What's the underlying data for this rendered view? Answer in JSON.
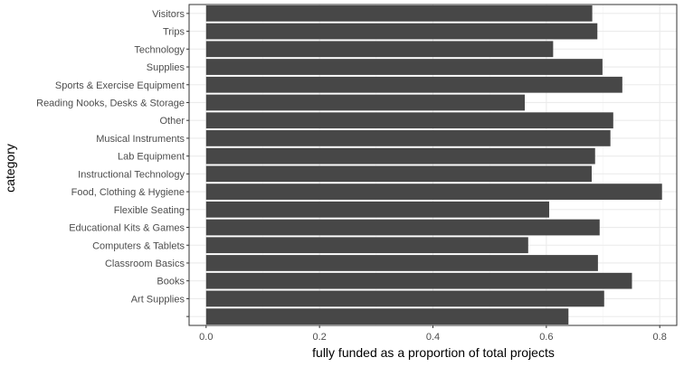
{
  "chart_data": {
    "type": "bar",
    "orientation": "horizontal",
    "xlabel": "fully funded as a proportion of total projects",
    "ylabel": "category",
    "xlim": [
      -0.03,
      0.83
    ],
    "xticks": [
      0.0,
      0.2,
      0.4,
      0.6,
      0.8
    ],
    "xtick_labels": [
      "0.0",
      "0.2",
      "0.4",
      "0.6",
      "0.8"
    ],
    "grid": true,
    "legend": "none",
    "categories": [
      "Visitors",
      "Trips",
      "Technology",
      "Supplies",
      "Sports & Exercise Equipment",
      "Reading Nooks, Desks & Storage",
      "Other",
      "Musical Instruments",
      "Lab Equipment",
      "Instructional Technology",
      "Food, Clothing & Hygiene",
      "Flexible Seating",
      "Educational Kits & Games",
      "Computers & Tablets",
      "Classroom Basics",
      "Books",
      "Art Supplies",
      ""
    ],
    "values": [
      0.681,
      0.69,
      0.612,
      0.699,
      0.734,
      0.562,
      0.718,
      0.713,
      0.686,
      0.68,
      0.804,
      0.605,
      0.694,
      0.568,
      0.691,
      0.751,
      0.702,
      0.639
    ],
    "colors": {
      "bar": "#474747",
      "panel": "#ffffff",
      "border": "#333333",
      "grid_major": "#ebebeb",
      "grid_minor": "#f5f5f5"
    }
  }
}
